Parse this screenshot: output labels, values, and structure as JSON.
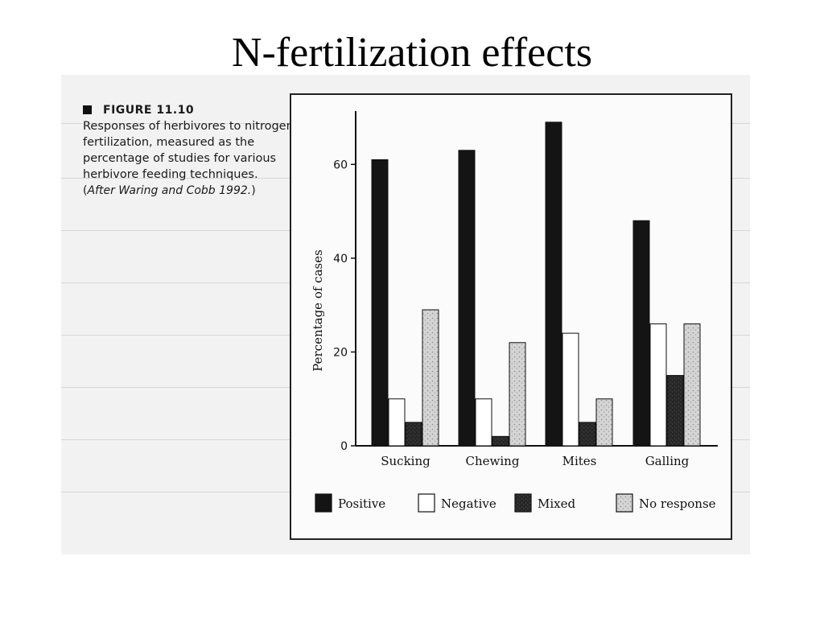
{
  "slide": {
    "title": "N-fertilization effects"
  },
  "figure": {
    "label": "FIGURE 11.10",
    "caption": "Responses of herbivores to nitrogen fertilization, measured as the percentage of studies for various herbivore feeding techniques.",
    "credit_prefix": "(",
    "credit_source": "After Waring and Cobb 1992.",
    "credit_suffix": ")"
  },
  "colors": {
    "positive": "#141414",
    "negative": "#ffffff",
    "mixed": "#2e2e2e",
    "no_response": "#d2d2d2",
    "frame": "#222222"
  },
  "chart_data": {
    "type": "bar",
    "categories": [
      "Sucking",
      "Chewing",
      "Mites",
      "Galling"
    ],
    "series": [
      {
        "name": "Positive",
        "values": [
          61,
          63,
          69,
          48
        ]
      },
      {
        "name": "Negative",
        "values": [
          10,
          10,
          24,
          26
        ]
      },
      {
        "name": "Mixed",
        "values": [
          5,
          2,
          5,
          15
        ]
      },
      {
        "name": "No response",
        "values": [
          29,
          22,
          10,
          26
        ]
      }
    ],
    "xlabel": "",
    "ylabel": "Percentage of cases",
    "ylim": [
      0,
      70
    ],
    "yticks": [
      0,
      20,
      40,
      60
    ],
    "grid": false,
    "legend_position": "bottom"
  }
}
